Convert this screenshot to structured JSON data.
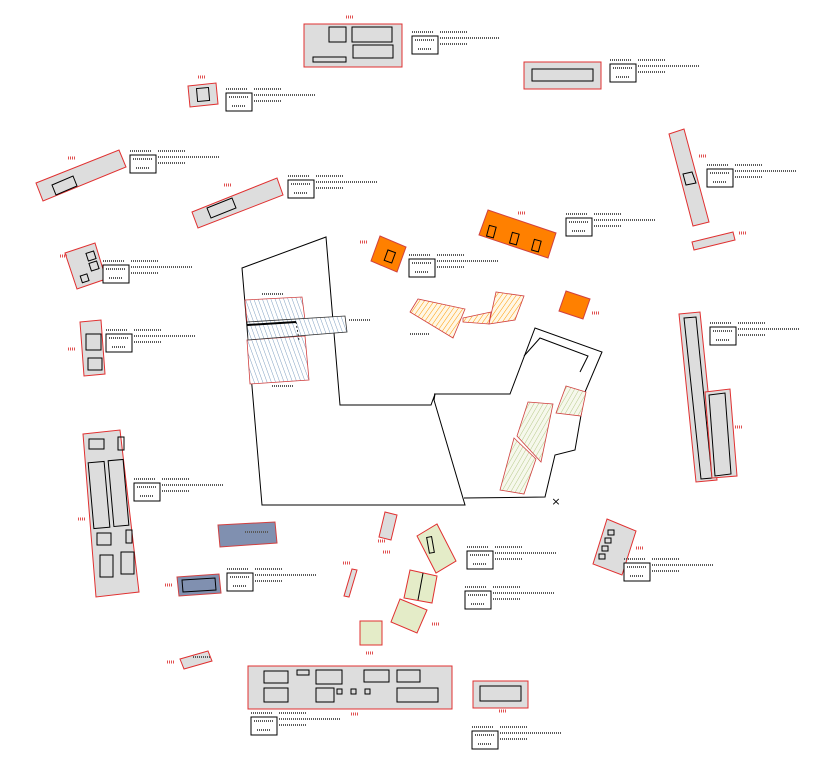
{
  "diagram": {
    "title": "",
    "colors": {
      "building_fill": "#dddddd",
      "building_stroke": "#e03030",
      "orange_fill": "#ff8000",
      "blue_fill": "#8090b0",
      "green_fill": "#e4ecc8",
      "hatch_blue": "#7f9fc0",
      "hatch_orange": "#ff9a00",
      "hatch_green": "#b7c98a",
      "outline": "#000000",
      "marker_red": "#e05050",
      "label_gray": "#5a5a5a"
    },
    "legend_labels": [
      {
        "id": "legend-top-center"
      },
      {
        "id": "legend-top-right"
      },
      {
        "id": "legend-upper-left"
      },
      {
        "id": "legend-left-wide"
      },
      {
        "id": "legend-center-left"
      },
      {
        "id": "legend-right-vertical"
      },
      {
        "id": "legend-orange-large"
      },
      {
        "id": "legend-orange-small"
      },
      {
        "id": "legend-left-small"
      },
      {
        "id": "legend-left-middle"
      },
      {
        "id": "legend-right-long"
      },
      {
        "id": "legend-left-tall"
      },
      {
        "id": "legend-blue"
      },
      {
        "id": "legend-green-1"
      },
      {
        "id": "legend-green-2"
      },
      {
        "id": "legend-right-small"
      },
      {
        "id": "legend-bottom-wide"
      },
      {
        "id": "legend-bottom-right"
      }
    ],
    "marker": "×"
  }
}
